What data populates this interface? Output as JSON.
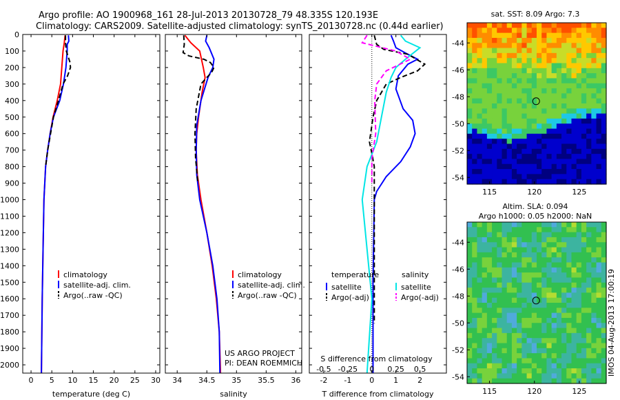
{
  "title": {
    "line1": "Argo profile: AO 1900968_161 28-Jul-2013 20130728_79 48.335S 120.193E",
    "line2": "Climatology: CARS2009. Satellite-adjusted climatology: synTS_20130728.nc (0.44d earlier)"
  },
  "colors": {
    "climatology": "#ff0000",
    "satellite": "#0000ff",
    "argo": "#000000",
    "sal_satellite": "#00e5e5",
    "sal_argo": "#ff00ff"
  },
  "side_text": "IMOS 04-Aug-2013 17:00:19",
  "chart_data": [
    {
      "type": "line",
      "xlabel": "temperature (deg C)",
      "xlim": [
        -2,
        31
      ],
      "xticks": [
        0,
        5,
        10,
        15,
        20,
        25,
        30
      ],
      "xtick_labels": [
        "0",
        "5",
        "10",
        "15",
        "20",
        "25",
        "30"
      ],
      "ylim": [
        2050,
        0
      ],
      "yticks": [
        0,
        100,
        200,
        300,
        400,
        500,
        600,
        700,
        800,
        900,
        1000,
        1100,
        1200,
        1300,
        1400,
        1500,
        1600,
        1700,
        1800,
        1900,
        2000
      ],
      "ytick_labels": [
        "0",
        "100",
        "200",
        "300",
        "400",
        "500",
        "600",
        "700",
        "800",
        "900",
        "1000",
        "1100",
        "1200",
        "1300",
        "1400",
        "1500",
        "1600",
        "1700",
        "1800",
        "1900",
        "2000"
      ],
      "legend": {
        "placement": "bottom-center",
        "entries": [
          "climatology",
          "satellite-adj. clim.",
          "Argo(..raw -QC)"
        ]
      },
      "series": [
        {
          "name": "climatology",
          "color": "#ff0000",
          "style": "solid",
          "x": [
            8.2,
            8.0,
            7.7,
            7.4,
            7.1,
            6.3,
            5.3,
            4.6,
            4.0,
            3.5,
            3.1,
            2.9,
            2.7,
            2.5
          ],
          "y": [
            5,
            50,
            100,
            200,
            300,
            400,
            500,
            600,
            700,
            800,
            1000,
            1300,
            1600,
            2050
          ]
        },
        {
          "name": "satellite-adj. clim.",
          "color": "#0000ff",
          "style": "solid",
          "x": [
            9.0,
            9.1,
            8.7,
            8.7,
            8.4,
            7.8,
            6.9,
            5.4,
            4.6,
            4.0,
            3.5,
            3.1,
            2.9,
            2.7,
            2.5
          ],
          "y": [
            5,
            40,
            60,
            100,
            200,
            300,
            400,
            500,
            600,
            700,
            800,
            1000,
            1300,
            1600,
            2050
          ]
        },
        {
          "name": "Argo(..raw -QC)",
          "color": "#000000",
          "style": "dashed",
          "x": [
            8.3,
            8.3,
            8.5,
            9.4,
            9.5,
            8.8,
            7.7,
            6.6,
            5.4,
            4.7,
            4.0,
            3.5
          ],
          "y": [
            5,
            50,
            100,
            170,
            200,
            250,
            300,
            400,
            500,
            600,
            700,
            800
          ]
        }
      ]
    },
    {
      "type": "line",
      "xlabel": "salinity",
      "xlim": [
        33.8,
        36.1
      ],
      "xticks": [
        34,
        34.5,
        35,
        35.5,
        36
      ],
      "xtick_labels": [
        "34",
        "34.5",
        "35",
        "35.5",
        "36"
      ],
      "ylim": [
        2050,
        0
      ],
      "annotations": [
        "US ARGO PROJECT",
        "PI: DEAN ROEMMICH"
      ],
      "legend": {
        "placement": "bottom-center",
        "entries": [
          "climatology",
          "satellite-adj. clim.",
          "Argo(..raw -QC)"
        ]
      },
      "series": [
        {
          "name": "climatology",
          "color": "#ff0000",
          "style": "solid",
          "x": [
            34.13,
            34.23,
            34.38,
            34.44,
            34.47,
            34.42,
            34.36,
            34.33,
            34.32,
            34.34,
            34.4,
            34.5,
            34.59,
            34.66,
            34.71,
            34.73
          ],
          "y": [
            5,
            50,
            100,
            200,
            260,
            350,
            500,
            600,
            700,
            850,
            1000,
            1200,
            1400,
            1600,
            1800,
            2050
          ]
        },
        {
          "name": "satellite-adj. clim.",
          "color": "#0000ff",
          "style": "solid",
          "x": [
            34.5,
            34.48,
            34.54,
            34.62,
            34.6,
            34.52,
            34.4,
            34.33,
            34.32,
            34.33,
            34.38,
            34.5,
            34.6,
            34.67,
            34.71,
            34.72
          ],
          "y": [
            5,
            40,
            80,
            150,
            200,
            260,
            400,
            550,
            700,
            850,
            1000,
            1200,
            1400,
            1600,
            1800,
            2050
          ]
        },
        {
          "name": "Argo(..raw -QC)",
          "color": "#000000",
          "style": "dashed",
          "x": [
            34.11,
            34.12,
            34.1,
            34.2,
            34.45,
            34.56,
            34.6,
            34.62,
            34.58,
            34.5,
            34.4,
            34.32,
            34.3,
            34.31,
            34.35
          ],
          "y": [
            5,
            60,
            110,
            130,
            150,
            170,
            190,
            200,
            230,
            260,
            300,
            450,
            600,
            750,
            900
          ]
        }
      ]
    },
    {
      "type": "line",
      "xlabel": "T difference from climatology",
      "xlabel_top": "S difference from climatology",
      "xlim": [
        -2.6,
        3.1
      ],
      "xticks": [
        -2,
        -1,
        0,
        1,
        2
      ],
      "xtick_labels": [
        "-2",
        "-1",
        "0",
        "1",
        "2"
      ],
      "top_ticks": [
        -0.5,
        -0.25,
        0,
        0.25,
        0.5
      ],
      "top_tick_labels": [
        "-0.5",
        "-0.25",
        "0",
        "0.25",
        "0.5"
      ],
      "ylim": [
        2050,
        0
      ],
      "legend": {
        "placement": "bottom",
        "headers": [
          "temperature",
          "salinity"
        ],
        "entries": [
          "satellite",
          "Argo(-adj)",
          "satellite",
          "Argo(-adj)"
        ]
      },
      "series": [
        {
          "name": "satellite",
          "group": "temperature",
          "color": "#0000ff",
          "style": "solid",
          "x": [
            0.8,
            0.9,
            1.0,
            1.5,
            1.9,
            1.5,
            1.1,
            1.0,
            1.3,
            1.7,
            1.8,
            1.6,
            1.2,
            0.6,
            0.2,
            0.1,
            0.05,
            0.05
          ],
          "y": [
            5,
            40,
            80,
            120,
            150,
            180,
            250,
            330,
            450,
            520,
            600,
            680,
            770,
            860,
            950,
            1000,
            1500,
            2050
          ]
        },
        {
          "name": "Argo(-adj)",
          "group": "temperature",
          "color": "#000000",
          "style": "dashed",
          "x": [
            0.1,
            0.2,
            0.5,
            1.5,
            2.2,
            1.9,
            1.2,
            0.6,
            0.2,
            0.05,
            -0.1,
            0,
            0.1,
            0.1,
            0.1
          ],
          "y": [
            5,
            60,
            90,
            120,
            180,
            220,
            260,
            300,
            400,
            500,
            650,
            720,
            800,
            1000,
            1750
          ]
        },
        {
          "name": "satellite",
          "group": "salinity",
          "color": "#00e5e5",
          "style": "solid",
          "x": [
            0.3,
            0.35,
            0.5,
            0.35,
            0.25,
            0.2,
            0.15,
            0.1,
            0.05,
            -0.05,
            -0.1,
            -0.05,
            0,
            -0.05
          ],
          "y": [
            5,
            40,
            80,
            150,
            200,
            260,
            350,
            500,
            650,
            800,
            1000,
            1300,
            1600,
            2050
          ]
        },
        {
          "name": "Argo(-adj)",
          "group": "salinity",
          "color": "#ff00ff",
          "style": "dashed",
          "x": [
            -0.05,
            -0.1,
            0.25,
            0.4,
            0.15,
            0.05,
            0.03,
            0.04,
            0.0,
            0.0
          ],
          "y": [
            5,
            50,
            100,
            150,
            220,
            300,
            400,
            600,
            750,
            900
          ]
        }
      ]
    },
    {
      "type": "heatmap",
      "title": "sat. SST: 8.09 Argo: 7.3",
      "xlim": [
        112.5,
        128
      ],
      "ylim": [
        -54.5,
        -42.5
      ],
      "xticks": [
        115,
        120,
        125
      ],
      "xtick_labels": [
        "115",
        "120",
        "125"
      ],
      "yticks": [
        -44,
        -46,
        -48,
        -50,
        -52,
        -54
      ],
      "ytick_labels": [
        "-44",
        "-46",
        "-48",
        "-50",
        "-52",
        "-54"
      ],
      "marker": {
        "lon": 120.193,
        "lat": -48.335
      },
      "colormap": [
        "#000080",
        "#0000cd",
        "#0050ff",
        "#1ec8e6",
        "#3cc864",
        "#78d23c",
        "#c8dc28",
        "#ffc800",
        "#ff8c00",
        "#ff5000"
      ]
    },
    {
      "type": "heatmap",
      "title": "Altim. SLA: 0.094",
      "subtitle": "Argo h1000: 0.05 h2000: NaN",
      "xlim": [
        112.5,
        128
      ],
      "ylim": [
        -54.5,
        -42.5
      ],
      "xticks": [
        115,
        120,
        125
      ],
      "xtick_labels": [
        "115",
        "120",
        "125"
      ],
      "yticks": [
        -44,
        -46,
        -48,
        -50,
        -52,
        -54
      ],
      "ytick_labels": [
        "-44",
        "-46",
        "-48",
        "-50",
        "-52",
        "-54"
      ],
      "marker": {
        "lon": 120.193,
        "lat": -48.335
      },
      "colormap": [
        "#50aadc",
        "#3cb4a0",
        "#32c050",
        "#78d23c",
        "#b4dc32",
        "#ff9632"
      ]
    }
  ]
}
